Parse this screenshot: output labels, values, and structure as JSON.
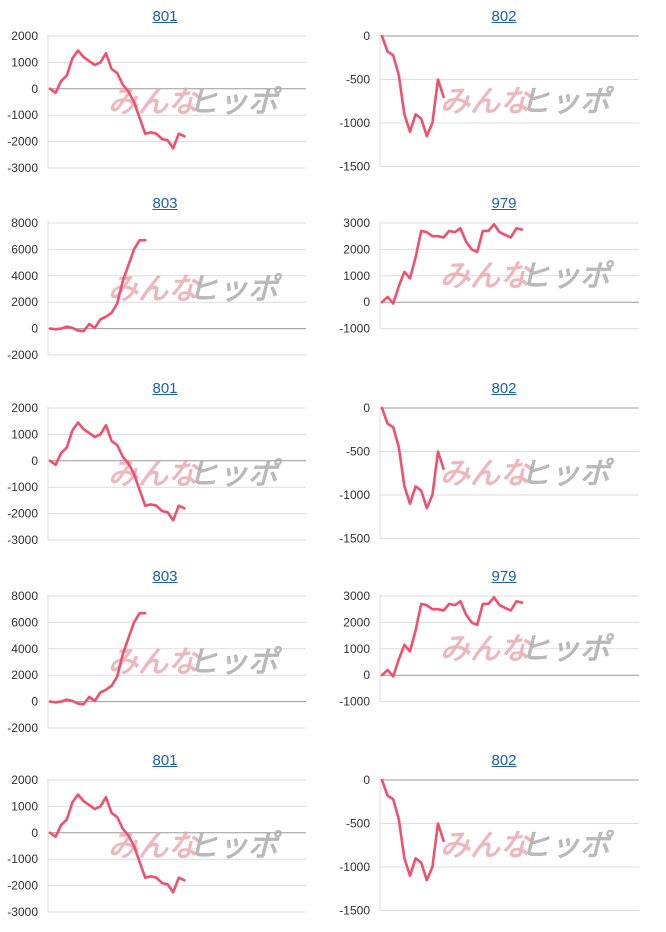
{
  "line_color": "#f0506e",
  "link_color": "#1a5fb4",
  "watermark": {
    "part1": "みんな",
    "part2": "ヒッポ"
  },
  "chart_data": [
    {
      "type": "line",
      "title": "801",
      "ylim": [
        -3000,
        2000
      ],
      "yticks": [
        "2000",
        "1000",
        "0",
        "-1000",
        "-2000",
        "-3000"
      ],
      "values": [
        0,
        -150,
        300,
        500,
        1150,
        1450,
        1200,
        1050,
        900,
        1000,
        1350,
        750,
        600,
        150,
        -100,
        -500,
        -1100,
        -1700,
        -1650,
        -1700,
        -1900,
        -1950,
        -2250,
        -1700,
        -1800
      ]
    },
    {
      "type": "line",
      "title": "802",
      "ylim": [
        -1500,
        0
      ],
      "yticks": [
        "0",
        "-500",
        "-1000",
        "-1500"
      ],
      "values": [
        0,
        -180,
        -220,
        -450,
        -900,
        -1100,
        -900,
        -950,
        -1150,
        -1000,
        -500,
        -700
      ]
    },
    {
      "type": "line",
      "title": "803",
      "ylim": [
        -2000,
        8000
      ],
      "yticks": [
        "8000",
        "6000",
        "4000",
        "2000",
        "0",
        "-2000"
      ],
      "values": [
        0,
        -50,
        0,
        150,
        50,
        -150,
        -200,
        350,
        50,
        700,
        900,
        1200,
        1900,
        3600,
        4800,
        6000,
        6700,
        6700
      ]
    },
    {
      "type": "line",
      "title": "979",
      "ylim": [
        -1000,
        3000
      ],
      "yticks": [
        "3000",
        "2000",
        "1000",
        "0",
        "-1000"
      ],
      "values": [
        0,
        200,
        -50,
        600,
        1150,
        900,
        1700,
        2700,
        2650,
        2500,
        2500,
        2450,
        2700,
        2650,
        2800,
        2300,
        2000,
        1900,
        2700,
        2700,
        2950,
        2650,
        2550,
        2450,
        2800,
        2750
      ]
    },
    {
      "type": "line",
      "title": "801",
      "ylim": [
        -3000,
        2000
      ],
      "yticks": [
        "2000",
        "1000",
        "0",
        "-1000",
        "-2000",
        "-3000"
      ],
      "values": [
        0,
        -150,
        300,
        500,
        1150,
        1450,
        1200,
        1050,
        900,
        1000,
        1350,
        750,
        600,
        150,
        -100,
        -500,
        -1100,
        -1700,
        -1650,
        -1700,
        -1900,
        -1950,
        -2250,
        -1700,
        -1800
      ]
    },
    {
      "type": "line",
      "title": "802",
      "ylim": [
        -1500,
        0
      ],
      "yticks": [
        "0",
        "-500",
        "-1000",
        "-1500"
      ],
      "values": [
        0,
        -180,
        -220,
        -450,
        -900,
        -1100,
        -900,
        -950,
        -1150,
        -1000,
        -500,
        -700
      ]
    },
    {
      "type": "line",
      "title": "803",
      "ylim": [
        -2000,
        8000
      ],
      "yticks": [
        "8000",
        "6000",
        "4000",
        "2000",
        "0",
        "-2000"
      ],
      "values": [
        0,
        -50,
        0,
        150,
        50,
        -150,
        -200,
        350,
        50,
        700,
        900,
        1200,
        1900,
        3600,
        4800,
        6000,
        6700,
        6700
      ]
    },
    {
      "type": "line",
      "title": "979",
      "ylim": [
        -1000,
        3000
      ],
      "yticks": [
        "3000",
        "2000",
        "1000",
        "0",
        "-1000"
      ],
      "values": [
        0,
        200,
        -50,
        600,
        1150,
        900,
        1700,
        2700,
        2650,
        2500,
        2500,
        2450,
        2700,
        2650,
        2800,
        2300,
        2000,
        1900,
        2700,
        2700,
        2950,
        2650,
        2550,
        2450,
        2800,
        2750
      ]
    },
    {
      "type": "line",
      "title": "801",
      "ylim": [
        -3000,
        2000
      ],
      "yticks": [
        "2000",
        "1000",
        "0",
        "-1000",
        "-2000",
        "-3000"
      ],
      "values": [
        0,
        -150,
        300,
        500,
        1150,
        1450,
        1200,
        1050,
        900,
        1000,
        1350,
        750,
        600,
        150,
        -100,
        -500,
        -1100,
        -1700,
        -1650,
        -1700,
        -1900,
        -1950,
        -2250,
        -1700,
        -1800
      ]
    },
    {
      "type": "line",
      "title": "802",
      "ylim": [
        -1500,
        0
      ],
      "yticks": [
        "0",
        "-500",
        "-1000",
        "-1500"
      ],
      "values": [
        0,
        -180,
        -220,
        -450,
        -900,
        -1100,
        -900,
        -950,
        -1150,
        -1000,
        -500,
        -700
      ]
    }
  ]
}
